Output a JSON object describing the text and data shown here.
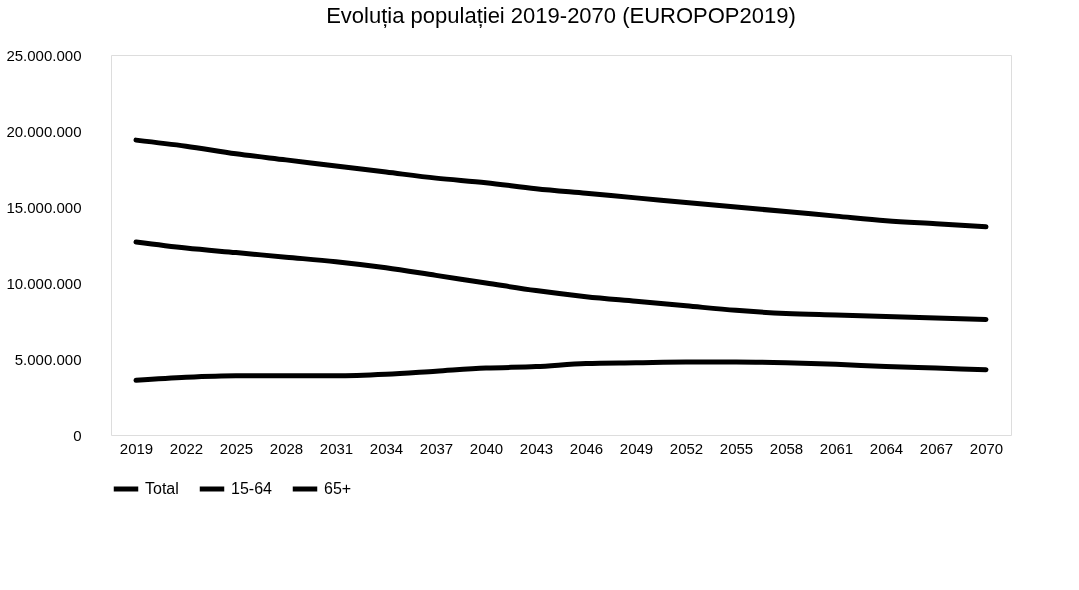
{
  "chart_data": {
    "type": "line",
    "title": "Evoluția populației 2019-2070 (EUROPOP2019)",
    "categories": [
      "2019",
      "2022",
      "2025",
      "2028",
      "2031",
      "2034",
      "2037",
      "2040",
      "2043",
      "2046",
      "2049",
      "2052",
      "2055",
      "2058",
      "2061",
      "2064",
      "2067",
      "2070"
    ],
    "series": [
      {
        "name": "Total",
        "color": "#000000",
        "values": [
          19400000,
          19000000,
          18500000,
          18100000,
          17700000,
          17300000,
          16900000,
          16600000,
          16200000,
          15900000,
          15600000,
          15300000,
          15000000,
          14700000,
          14400000,
          14100000,
          13900000,
          13700000
        ]
      },
      {
        "name": "15-64",
        "color": "#000000",
        "values": [
          12700000,
          12300000,
          12000000,
          11700000,
          11400000,
          11000000,
          10500000,
          10000000,
          9500000,
          9100000,
          8800000,
          8500000,
          8200000,
          8000000,
          7900000,
          7800000,
          7700000,
          7600000
        ]
      },
      {
        "name": "65+",
        "color": "#000000",
        "values": [
          3600000,
          3800000,
          3900000,
          3900000,
          3900000,
          4000000,
          4200000,
          4400000,
          4500000,
          4700000,
          4750000,
          4800000,
          4800000,
          4750000,
          4650000,
          4500000,
          4400000,
          4300000
        ]
      }
    ],
    "ylim": [
      0,
      25000000
    ],
    "yticks": [
      {
        "value": 0,
        "label": "0"
      },
      {
        "value": 5000000,
        "label": "5.000.000"
      },
      {
        "value": 10000000,
        "label": "10.000.000"
      },
      {
        "value": 15000000,
        "label": "15.000.000"
      },
      {
        "value": 20000000,
        "label": "20.000.000"
      },
      {
        "value": 25000000,
        "label": "25.000.000"
      }
    ],
    "grid": false,
    "legend": "bottom",
    "line_style": "solid",
    "marker": "none"
  }
}
